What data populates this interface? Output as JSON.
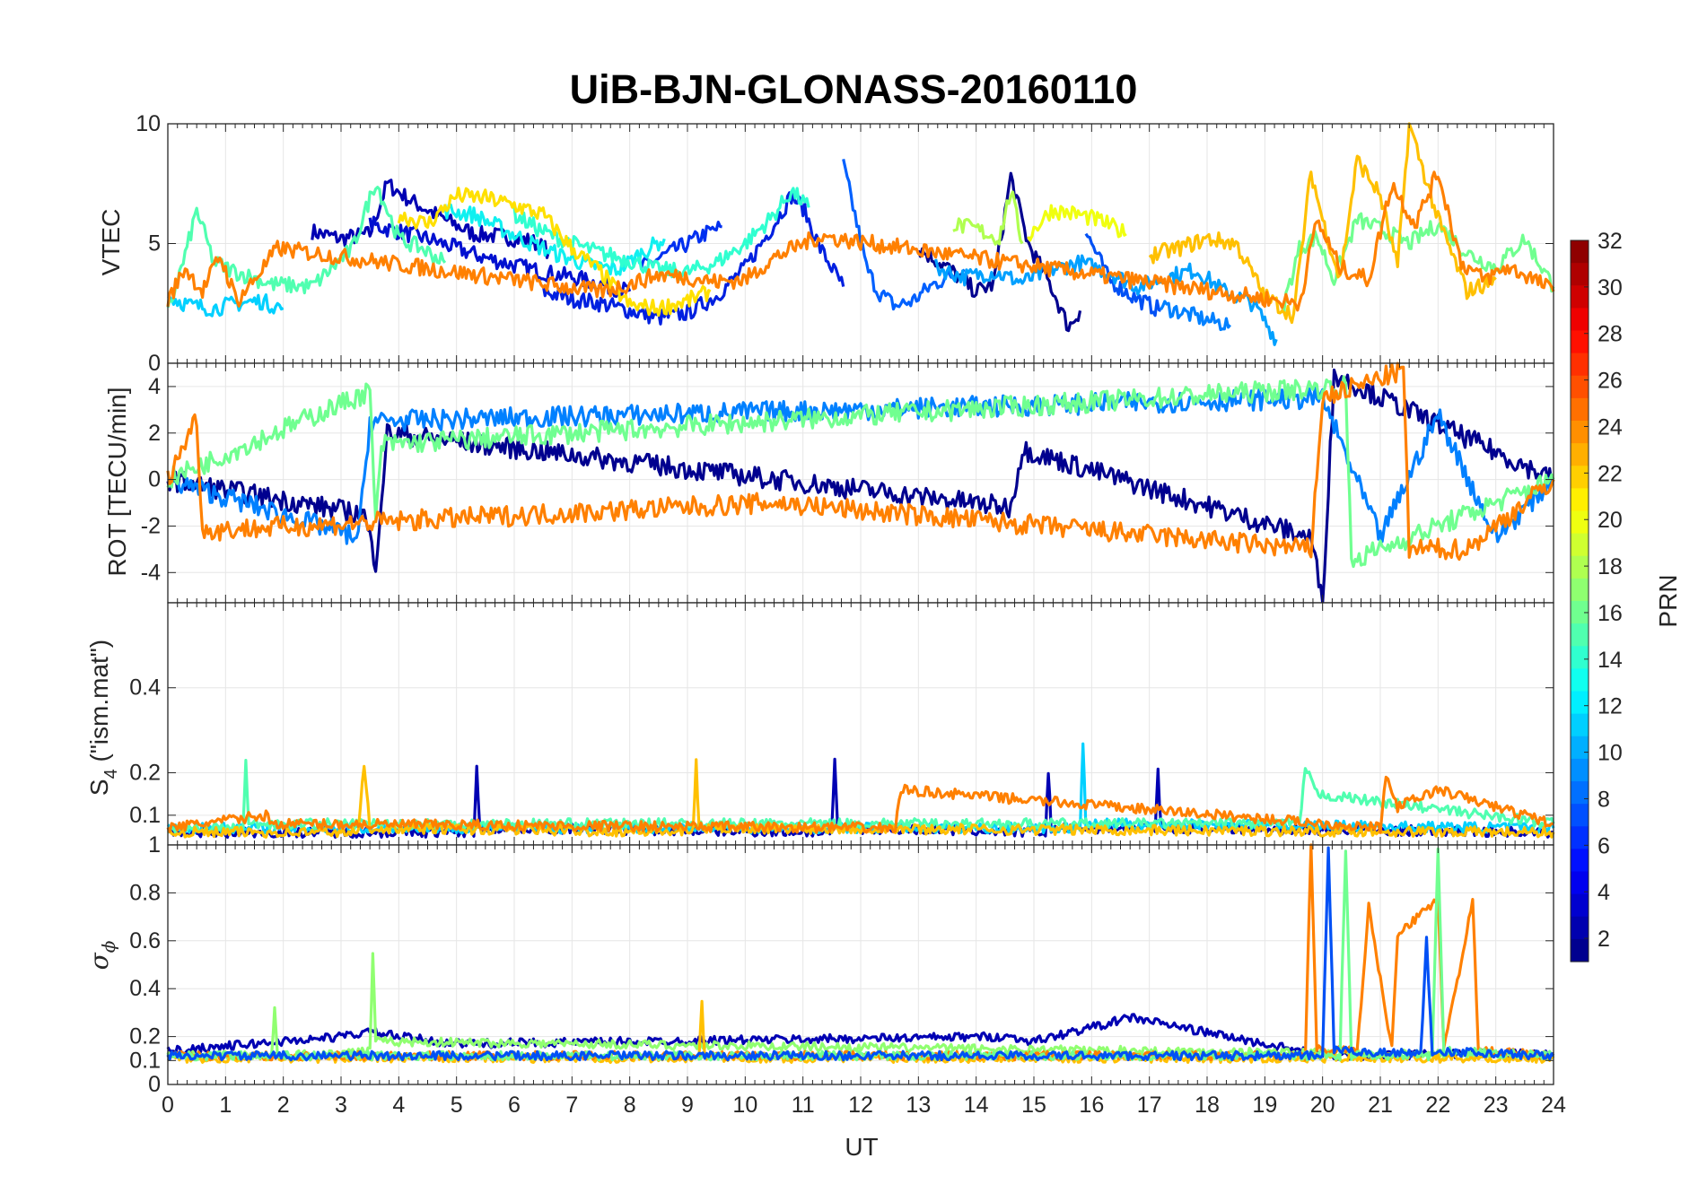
{
  "title": "UiB-BJN-GLONASS-20160110",
  "xlabel": "UT",
  "panels": {
    "vtec": {
      "ylabel": "VTEC"
    },
    "rot": {
      "ylabel": "ROT [TECU/min]"
    },
    "s4": {
      "ylabel_main": "S",
      "ylabel_sub": "4",
      "ylabel_rest": " (\"ism.mat\")"
    },
    "sigma": {
      "ylabel_symbol": "σ",
      "ylabel_sub": "ϕ"
    }
  },
  "colorbar": {
    "label": "PRN",
    "ticks": [
      "2",
      "4",
      "6",
      "8",
      "10",
      "12",
      "14",
      "16",
      "18",
      "20",
      "22",
      "24",
      "26",
      "28",
      "30",
      "32"
    ],
    "colormap": "jet",
    "range": [
      1,
      32
    ]
  },
  "chart_data": [
    {
      "type": "line",
      "panel": "vtec",
      "ylabel": "VTEC",
      "xlim": [
        0,
        24
      ],
      "ylim": [
        0,
        10
      ],
      "x_ticks": [
        "0",
        "1",
        "2",
        "3",
        "4",
        "5",
        "6",
        "7",
        "8",
        "9",
        "10",
        "11",
        "12",
        "13",
        "14",
        "15",
        "16",
        "17",
        "18",
        "19",
        "20",
        "21",
        "22",
        "23",
        "24"
      ],
      "y_ticks": [
        "0",
        "5",
        "10"
      ],
      "grid": true,
      "series": [
        {
          "prn": 2,
          "color": "#0000b3",
          "x": [
            2.5,
            3.0,
            3.5,
            3.8,
            4.2,
            4.8,
            5.3,
            5.8,
            6.3,
            6.6
          ],
          "values": [
            5.5,
            5.2,
            5.4,
            7.5,
            6.8,
            6.0,
            5.4,
            5.3,
            5.1,
            4.7
          ]
        },
        {
          "prn": 3,
          "color": "#0010d0",
          "x": [
            3.5,
            4.0,
            4.5,
            5.0,
            5.5,
            6.0,
            6.5,
            7.0,
            7.5,
            8.0
          ],
          "values": [
            5.8,
            5.5,
            5.2,
            4.8,
            4.4,
            4.1,
            3.8,
            3.6,
            3.3,
            3.0
          ]
        },
        {
          "prn": 5,
          "color": "#0030f0",
          "x": [
            8.2,
            8.6,
            9.0,
            9.3,
            9.6
          ],
          "values": [
            4.0,
            4.5,
            5.0,
            5.4,
            5.7
          ]
        },
        {
          "prn": 4,
          "color": "#0020e0",
          "x": [
            6.5,
            7.0,
            7.5,
            8.0,
            8.5,
            9.0,
            9.5,
            10.0,
            10.5,
            10.8,
            11.0,
            11.3,
            11.7
          ],
          "values": [
            3.0,
            2.7,
            2.5,
            2.2,
            1.9,
            2.1,
            2.8,
            4.0,
            5.8,
            7.0,
            6.5,
            4.8,
            3.2
          ]
        },
        {
          "prn": 7,
          "color": "#0060ff",
          "x": [
            11.7,
            11.9,
            12.1,
            12.3,
            12.6,
            12.9,
            13.2,
            13.5,
            13.8
          ],
          "values": [
            8.3,
            6.2,
            4.0,
            3.0,
            2.4,
            2.6,
            3.2,
            3.6,
            3.9
          ]
        },
        {
          "prn": 1,
          "color": "#00008f",
          "x": [
            13.0,
            13.5,
            14.0,
            14.3,
            14.6,
            14.9,
            15.3,
            15.6,
            15.8
          ],
          "values": [
            4.8,
            4.0,
            3.0,
            3.3,
            7.8,
            5.0,
            3.2,
            1.5,
            2.2
          ]
        },
        {
          "prn": 6,
          "color": "#0050f5",
          "x": [
            15.9,
            16.3,
            16.7,
            17.2
          ],
          "values": [
            5.5,
            3.5,
            2.8,
            2.2
          ]
        },
        {
          "prn": 8,
          "color": "#0080ff",
          "x": [
            17.2,
            17.6,
            18.0,
            18.4
          ],
          "values": [
            2.4,
            2.1,
            1.8,
            1.6
          ]
        },
        {
          "prn": 10,
          "color": "#00a0ff",
          "x": [
            13.3,
            13.8,
            14.3,
            14.8,
            15.3,
            15.8,
            16.3,
            16.8,
            17.3,
            17.8,
            18.3,
            18.8,
            19.2
          ],
          "values": [
            4.0,
            3.6,
            3.8,
            3.4,
            3.9,
            4.2,
            3.8,
            3.2,
            3.6,
            3.9,
            3.0,
            2.5,
            1.0
          ]
        },
        {
          "prn": 12,
          "color": "#00d0ff",
          "x": [
            0.0,
            0.4,
            0.8,
            1.2,
            1.6,
            2.0
          ],
          "values": [
            2.8,
            2.4,
            2.3,
            2.5,
            2.6,
            2.3
          ]
        },
        {
          "prn": 13,
          "color": "#10f0f0",
          "x": [
            4.8,
            5.3,
            5.8,
            6.3,
            6.8,
            7.3,
            7.8,
            8.2,
            8.6
          ],
          "values": [
            6.4,
            6.2,
            5.6,
            5.0,
            4.5,
            4.1,
            3.9,
            4.6,
            5.2
          ]
        },
        {
          "prn": 14,
          "color": "#30ffd0",
          "x": [
            6.0,
            6.5,
            7.0,
            7.5,
            8.0,
            8.5,
            9.0,
            9.5,
            10.0,
            10.5,
            10.8,
            11.1
          ],
          "values": [
            6.2,
            5.5,
            5.0,
            4.6,
            4.3,
            3.9,
            3.8,
            4.2,
            5.0,
            6.2,
            7.2,
            6.5
          ]
        },
        {
          "prn": 15,
          "color": "#50ffb0",
          "x": [
            0.0,
            0.3,
            0.5,
            0.8,
            1.2,
            1.8,
            2.5,
            3.2,
            3.6,
            4.0,
            4.4,
            4.8
          ],
          "values": [
            2.1,
            4.5,
            6.4,
            4.2,
            3.8,
            3.3,
            3.2,
            4.8,
            7.6,
            5.2,
            4.8,
            4.2
          ]
        },
        {
          "prn": 16,
          "color": "#70ff90",
          "x": [
            19.3,
            19.6,
            19.9,
            20.2,
            20.6,
            21.0,
            21.5,
            22.0,
            22.5,
            23.0,
            23.5,
            24.0
          ],
          "values": [
            2.2,
            4.8,
            5.3,
            3.5,
            6.0,
            5.6,
            5.0,
            5.8,
            4.6,
            4.0,
            5.2,
            3.2
          ]
        },
        {
          "prn": 18,
          "color": "#b0ff50",
          "x": [
            13.6,
            14.0,
            14.4,
            14.6,
            14.8
          ],
          "values": [
            5.8,
            5.6,
            5.2,
            7.2,
            5.0
          ]
        },
        {
          "prn": 20,
          "color": "#f0ff10",
          "x": [
            14.9,
            15.3,
            15.8,
            16.2,
            16.6
          ],
          "values": [
            5.3,
            6.4,
            6.2,
            5.9,
            5.4
          ]
        },
        {
          "prn": 21,
          "color": "#ffe000",
          "x": [
            4.0,
            4.5,
            5.0,
            5.5,
            6.0,
            6.5,
            7.0,
            7.5,
            8.0,
            8.5,
            9.0,
            9.4
          ],
          "values": [
            6.2,
            5.8,
            7.0,
            6.9,
            6.6,
            6.2,
            4.8,
            3.8,
            2.4,
            2.3,
            2.6,
            3.0
          ]
        },
        {
          "prn": 22,
          "color": "#ffc000",
          "x": [
            17.0,
            17.5,
            18.0,
            18.5,
            19.0,
            19.5,
            19.8,
            20.0,
            20.3,
            20.6,
            21.0,
            21.3,
            21.5,
            22.0,
            22.5,
            23.0
          ],
          "values": [
            4.5,
            4.8,
            5.2,
            5.0,
            2.8,
            2.0,
            8.0,
            6.0,
            3.5,
            8.5,
            7.0,
            4.0,
            10.0,
            6.0,
            3.0,
            3.5
          ]
        },
        {
          "prn": 24,
          "color": "#ff8000",
          "x": [
            0.0,
            0.3,
            0.6,
            0.9,
            1.2,
            1.5,
            1.9,
            7.5,
            8.0,
            8.5,
            9.0,
            9.5,
            10.0,
            10.5,
            11.0,
            11.3,
            19.6,
            19.9,
            20.3,
            20.8,
            21.2,
            21.6,
            22.0,
            22.4,
            22.8,
            23.2,
            23.6,
            24.0
          ],
          "values": [
            2.6,
            4.0,
            3.0,
            4.5,
            2.6,
            3.5,
            4.8,
            3.0,
            3.3,
            3.7,
            3.6,
            3.4,
            3.5,
            4.4,
            5.0,
            5.3,
            2.5,
            6.0,
            4.0,
            3.5,
            7.5,
            5.8,
            8.0,
            4.2,
            3.5,
            4.0,
            3.6,
            3.0
          ]
        }
      ]
    },
    {
      "type": "line",
      "panel": "rot",
      "ylabel": "ROT [TECU/min]",
      "xlim": [
        0,
        24
      ],
      "ylim": [
        -5.3,
        5
      ],
      "y_ticks": [
        "-4",
        "-2",
        "0",
        "2",
        "4"
      ],
      "grid": true,
      "series": [
        {
          "prn": 1,
          "color": "#00008f",
          "x": [
            0,
            3.4,
            3.6,
            3.8,
            14.6,
            14.8,
            19.8,
            20.0,
            20.2,
            24.0
          ],
          "values": [
            0,
            -1.5,
            -3.6,
            2.0,
            -1.2,
            1.3,
            -2.5,
            -5.2,
            4.5,
            0
          ]
        },
        {
          "prn": 8,
          "color": "#0080ff",
          "x": [
            0,
            3.3,
            3.5,
            20.0,
            21.0,
            22.0,
            23.0,
            24.0
          ],
          "values": [
            0,
            -2.5,
            2.5,
            3.5,
            -2.5,
            2.8,
            -2.5,
            0
          ]
        },
        {
          "prn": 16,
          "color": "#70ff90",
          "x": [
            0,
            3.5,
            3.6,
            3.7,
            20.4,
            20.5,
            21.0,
            24.0
          ],
          "values": [
            0,
            3.8,
            -2.0,
            1.5,
            4.0,
            -3.5,
            -3.0,
            0
          ]
        },
        {
          "prn": 24,
          "color": "#ff8000",
          "x": [
            0,
            0.5,
            0.6,
            10.5,
            19.8,
            20.0,
            21.4,
            21.5,
            22.5,
            24.0
          ],
          "values": [
            0,
            2.7,
            -2.2,
            -1.0,
            -3.0,
            3.5,
            4.7,
            -3.0,
            -3.0,
            0
          ]
        }
      ]
    },
    {
      "type": "line",
      "panel": "s4",
      "ylabel": "S4 (\"ism.mat\")",
      "xlim": [
        0,
        24
      ],
      "ylim": [
        0.03,
        0.6
      ],
      "y_ticks": [
        "0.1",
        "0.2",
        "0.4"
      ],
      "grid": true,
      "series": [
        {
          "prn": 2,
          "color": "#0000b3",
          "x": [
            0,
            5.3,
            5.35,
            5.4,
            11.5,
            11.55,
            11.6,
            15.2,
            15.25,
            15.3,
            17.1,
            17.15,
            17.2,
            24.0
          ],
          "values": [
            0.06,
            0.06,
            0.22,
            0.07,
            0.06,
            0.22,
            0.07,
            0.06,
            0.2,
            0.07,
            0.07,
            0.21,
            0.07,
            0.06
          ]
        },
        {
          "prn": 12,
          "color": "#00d0ff",
          "x": [
            0,
            15.8,
            15.85,
            15.9,
            24.0
          ],
          "values": [
            0.07,
            0.07,
            0.26,
            0.08,
            0.07
          ]
        },
        {
          "prn": 15,
          "color": "#50ffb0",
          "x": [
            0,
            1.3,
            1.35,
            1.4,
            19.6,
            19.7,
            19.9,
            24.0
          ],
          "values": [
            0.07,
            0.07,
            0.22,
            0.08,
            0.08,
            0.21,
            0.15,
            0.08
          ]
        },
        {
          "prn": 22,
          "color": "#ffc000",
          "x": [
            0,
            3.3,
            3.4,
            3.5,
            9.1,
            9.15,
            9.2,
            24.0
          ],
          "values": [
            0.06,
            0.06,
            0.22,
            0.07,
            0.06,
            0.23,
            0.07,
            0.06
          ]
        },
        {
          "prn": 24,
          "color": "#ff8000",
          "x": [
            0,
            1.7,
            1.8,
            12.6,
            12.7,
            21.0,
            21.1,
            21.3,
            22.0,
            24.0
          ],
          "values": [
            0.07,
            0.1,
            0.08,
            0.07,
            0.16,
            0.07,
            0.19,
            0.12,
            0.16,
            0.08
          ]
        }
      ]
    },
    {
      "type": "line",
      "panel": "sigma",
      "ylabel": "σϕ",
      "xlim": [
        0,
        24
      ],
      "ylim": [
        0,
        1
      ],
      "y_ticks": [
        "0",
        "0.1",
        "0.2",
        "0.4",
        "0.6",
        "0.8",
        "1"
      ],
      "grid": true,
      "series": [
        {
          "prn": 2,
          "color": "#0000b3",
          "x": [
            0,
            3.0,
            3.5,
            4.0,
            5.0,
            14.5,
            15.0,
            16.7,
            20.0,
            24.0
          ],
          "values": [
            0.14,
            0.2,
            0.22,
            0.2,
            0.17,
            0.2,
            0.18,
            0.28,
            0.12,
            0.13
          ]
        },
        {
          "prn": 17,
          "color": "#90ff70",
          "x": [
            0,
            1.8,
            1.85,
            1.9,
            3.5,
            3.55,
            3.6,
            24.0
          ],
          "values": [
            0.12,
            0.12,
            0.32,
            0.12,
            0.14,
            0.54,
            0.18,
            0.12
          ]
        },
        {
          "prn": 22,
          "color": "#ffc000",
          "x": [
            0,
            9.2,
            9.25,
            9.3,
            24.0
          ],
          "values": [
            0.11,
            0.11,
            0.34,
            0.11,
            0.11
          ]
        },
        {
          "prn": 24,
          "color": "#ff8000",
          "x": [
            0,
            19.7,
            19.8,
            19.9,
            20.6,
            20.8,
            21.2,
            21.3,
            22.0,
            22.1,
            22.6,
            22.7,
            24.0
          ],
          "values": [
            0.12,
            0.12,
            1.0,
            0.15,
            0.14,
            0.74,
            0.15,
            0.62,
            0.78,
            0.15,
            0.76,
            0.14,
            0.12
          ]
        },
        {
          "prn": 16,
          "color": "#70ff90",
          "x": [
            0,
            20.3,
            20.4,
            20.5,
            21.9,
            22.0,
            22.1,
            24.0
          ],
          "values": [
            0.12,
            0.12,
            0.98,
            0.12,
            0.12,
            1.0,
            0.14,
            0.12
          ]
        },
        {
          "prn": 6,
          "color": "#0050f5",
          "x": [
            0,
            20.0,
            20.1,
            20.2,
            21.7,
            21.8,
            21.9,
            24.0
          ],
          "values": [
            0.12,
            0.12,
            1.0,
            0.14,
            0.13,
            0.6,
            0.14,
            0.12
          ]
        }
      ]
    }
  ]
}
